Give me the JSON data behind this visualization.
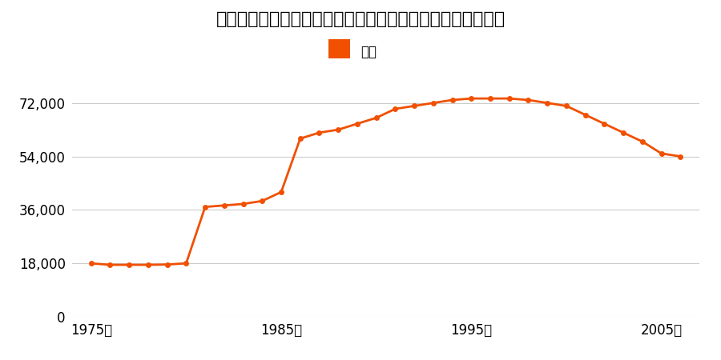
{
  "title": "佐賀県佐賀郡大和町大字尼寺字印鑰１５０４番１の地価推移",
  "legend_label": "価格",
  "line_color": "#f05000",
  "marker_color": "#f05000",
  "background_color": "#ffffff",
  "grid_color": "#cccccc",
  "years": [
    1975,
    1976,
    1977,
    1978,
    1979,
    1980,
    1981,
    1982,
    1983,
    1984,
    1985,
    1986,
    1987,
    1988,
    1989,
    1990,
    1991,
    1992,
    1993,
    1994,
    1995,
    1996,
    1997,
    1998,
    1999,
    2000,
    2001,
    2002,
    2003,
    2004,
    2005,
    2006
  ],
  "values": [
    18000,
    17500,
    17500,
    17500,
    17600,
    18000,
    37000,
    37500,
    38000,
    39000,
    42000,
    60000,
    62000,
    63000,
    65000,
    67000,
    70000,
    71000,
    72000,
    73000,
    73500,
    73500,
    73500,
    73000,
    72000,
    71000,
    68000,
    65000,
    62000,
    59000,
    55000,
    54000
  ],
  "yticks": [
    0,
    18000,
    36000,
    54000,
    72000
  ],
  "xtick_years": [
    1975,
    1985,
    1995,
    2005
  ],
  "ylim": [
    0,
    80000
  ],
  "xlim": [
    1974,
    2007
  ]
}
